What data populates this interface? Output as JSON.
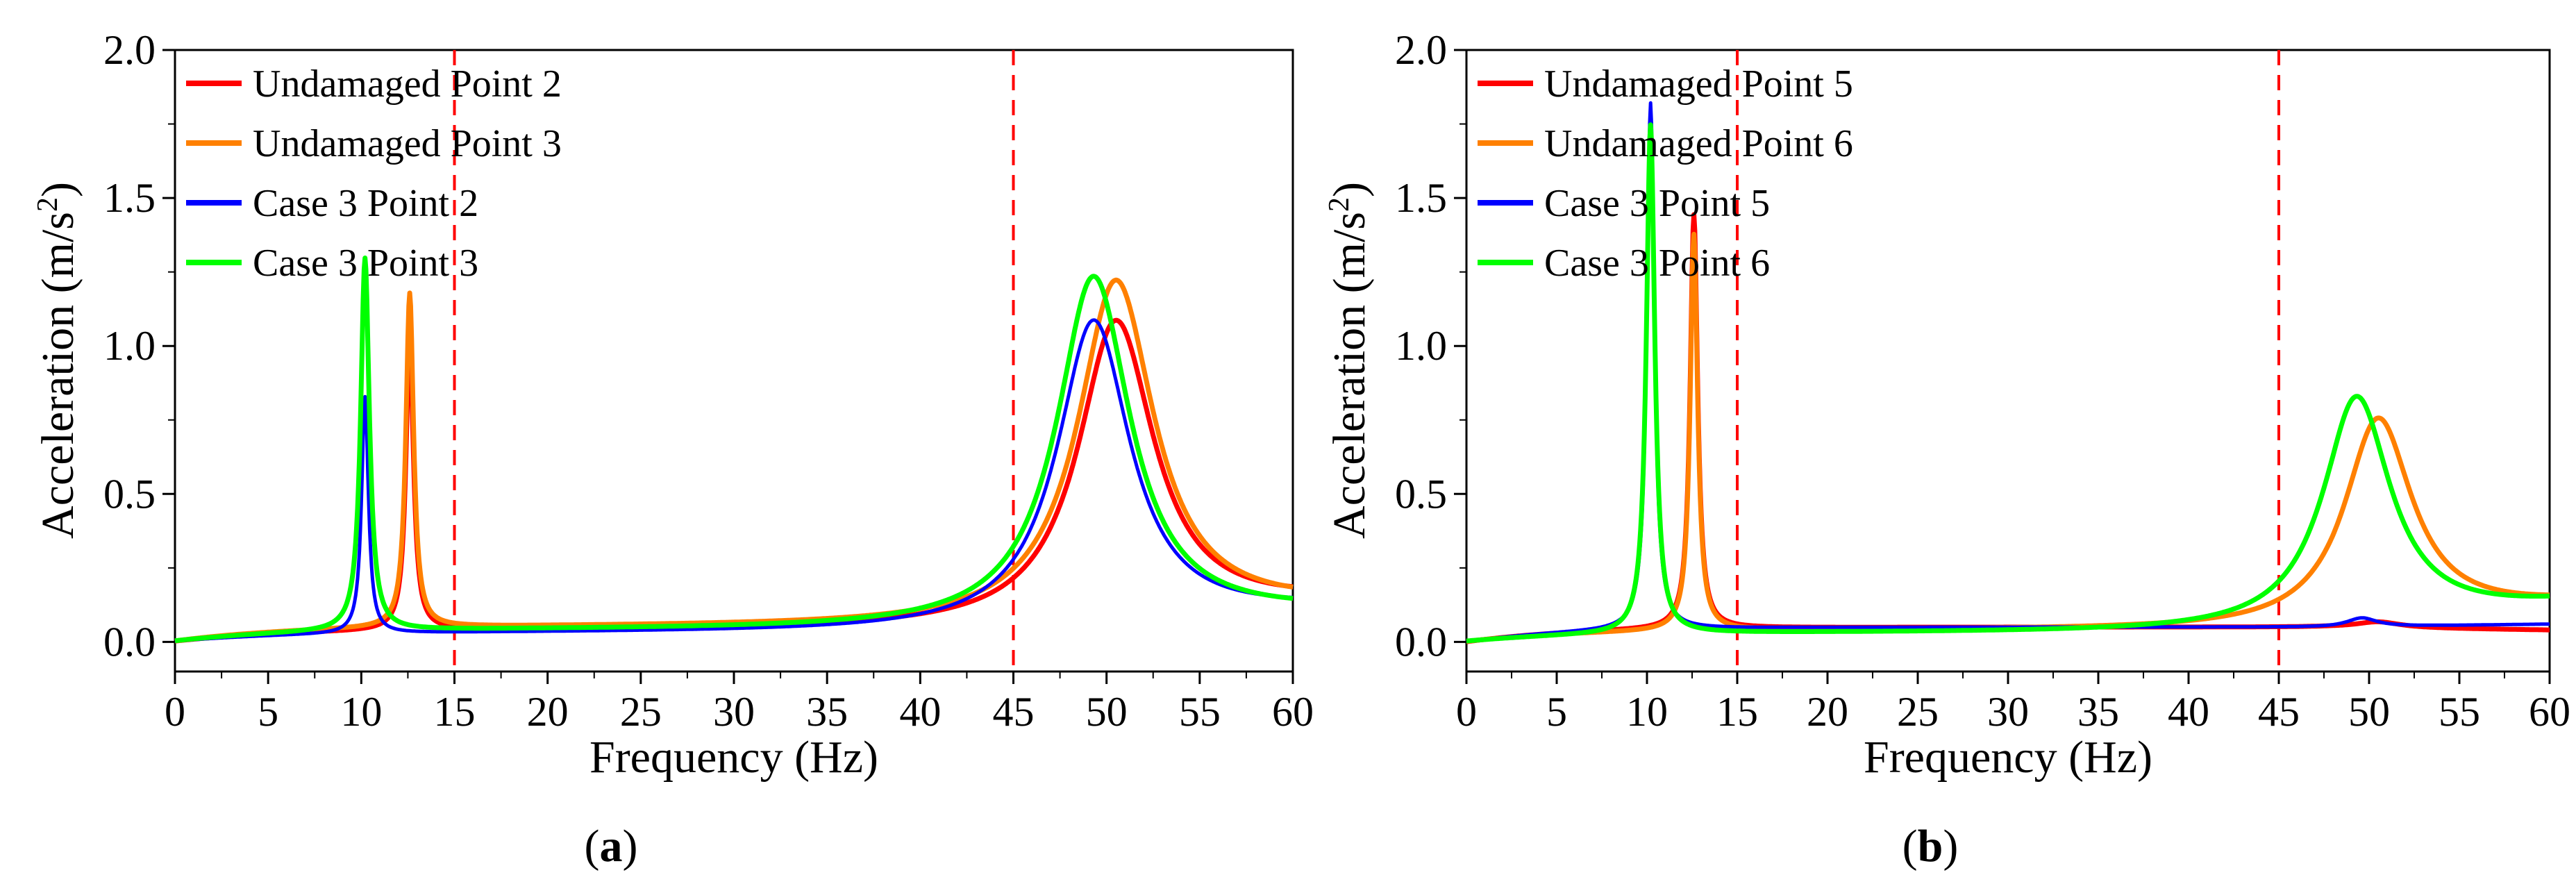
{
  "chart_data": [
    {
      "type": "line",
      "panel_label": "a",
      "caption": {
        "open": "(",
        "letter": "a",
        "close": ")"
      },
      "xlabel": "Frequency (Hz)",
      "ylabel": "Acceleration (m/s²)",
      "ylabel_main": "Acceleration (m/s",
      "ylabel_sup": "2",
      "ylabel_close": ")",
      "xlim": [
        0,
        60
      ],
      "ylim": [
        -0.1,
        2.0
      ],
      "xticks": [
        0,
        5,
        10,
        15,
        20,
        25,
        30,
        35,
        40,
        45,
        50,
        55,
        60
      ],
      "xtick_labels": [
        "0",
        "5",
        "10",
        "15",
        "20",
        "25",
        "30",
        "35",
        "40",
        "45",
        "50",
        "55",
        "60"
      ],
      "yticks": [
        0.0,
        0.5,
        1.0,
        1.5,
        2.0
      ],
      "ytick_labels": [
        "0.0",
        "0.5",
        "1.0",
        "1.5",
        "2.0"
      ],
      "vlines": [
        15,
        45
      ],
      "legend_position": "top-left, inside plot",
      "series": [
        {
          "name": "Undamaged Point 2",
          "color": "#ff0000",
          "peaks": [
            {
              "f": 12.6,
              "a": 0.97,
              "w": 0.25
            },
            {
              "f": 50.5,
              "a": 1.03,
              "w": 2.5
            }
          ],
          "baseline_mid": 0.04,
          "tail_end": 0.12
        },
        {
          "name": "Undamaged Point 3",
          "color": "#ff8000",
          "peaks": [
            {
              "f": 12.6,
              "a": 1.13,
              "w": 0.25
            },
            {
              "f": 50.5,
              "a": 1.16,
              "w": 2.5
            }
          ],
          "baseline_mid": 0.05,
          "tail_end": 0.11
        },
        {
          "name": "Case 3 Point 2",
          "color": "#0000ff",
          "peaks": [
            {
              "f": 10.2,
              "a": 0.8,
              "w": 0.22
            },
            {
              "f": 49.3,
              "a": 1.05,
              "w": 2.4
            }
          ],
          "baseline_mid": 0.03,
          "tail_end": 0.1
        },
        {
          "name": "Case 3 Point 3",
          "color": "#00ff00",
          "peaks": [
            {
              "f": 10.2,
              "a": 1.26,
              "w": 0.28
            },
            {
              "f": 49.3,
              "a": 1.19,
              "w": 2.4
            }
          ],
          "baseline_mid": 0.04,
          "tail_end": 0.09
        }
      ]
    },
    {
      "type": "line",
      "panel_label": "b",
      "caption": {
        "open": "(",
        "letter": "b",
        "close": ")"
      },
      "xlabel": "Frequency (Hz)",
      "ylabel": "Acceleration (m/s²)",
      "ylabel_main": "Acceleration (m/s",
      "ylabel_sup": "2",
      "ylabel_close": ")",
      "xlim": [
        0,
        60
      ],
      "ylim": [
        -0.1,
        2.0
      ],
      "xticks": [
        0,
        5,
        10,
        15,
        20,
        25,
        30,
        35,
        40,
        45,
        50,
        55,
        60
      ],
      "xtick_labels": [
        "0",
        "5",
        "10",
        "15",
        "20",
        "25",
        "30",
        "35",
        "40",
        "45",
        "50",
        "55",
        "60"
      ],
      "yticks": [
        0.0,
        0.5,
        1.0,
        1.5,
        2.0
      ],
      "ytick_labels": [
        "0.0",
        "0.5",
        "1.0",
        "1.5",
        "2.0"
      ],
      "vlines": [
        15,
        45
      ],
      "legend_position": "top-left, inside plot",
      "series": [
        {
          "name": "Undamaged Point 5",
          "color": "#ff0000",
          "peaks": [
            {
              "f": 12.6,
              "a": 1.4,
              "w": 0.25
            },
            {
              "f": 50.5,
              "a": 0.02,
              "w": 1.5
            }
          ],
          "baseline_mid": 0.05,
          "tail_end": 0.04
        },
        {
          "name": "Undamaged Point 6",
          "color": "#ff8000",
          "peaks": [
            {
              "f": 12.6,
              "a": 1.34,
              "w": 0.25
            },
            {
              "f": 50.5,
              "a": 0.7,
              "w": 2.3
            }
          ],
          "baseline_mid": 0.04,
          "tail_end": 0.12
        },
        {
          "name": "Case 3 Point 5",
          "color": "#0000ff",
          "peaks": [
            {
              "f": 10.2,
              "a": 1.78,
              "w": 0.25
            },
            {
              "f": 49.6,
              "a": 0.03,
              "w": 1.0
            }
          ],
          "baseline_mid": 0.05,
          "tail_end": 0.06
        },
        {
          "name": "Case 3 Point 6",
          "color": "#00ff00",
          "peaks": [
            {
              "f": 10.2,
              "a": 1.72,
              "w": 0.28
            },
            {
              "f": 49.3,
              "a": 0.79,
              "w": 2.3
            }
          ],
          "baseline_mid": 0.03,
          "tail_end": 0.12
        }
      ]
    }
  ]
}
